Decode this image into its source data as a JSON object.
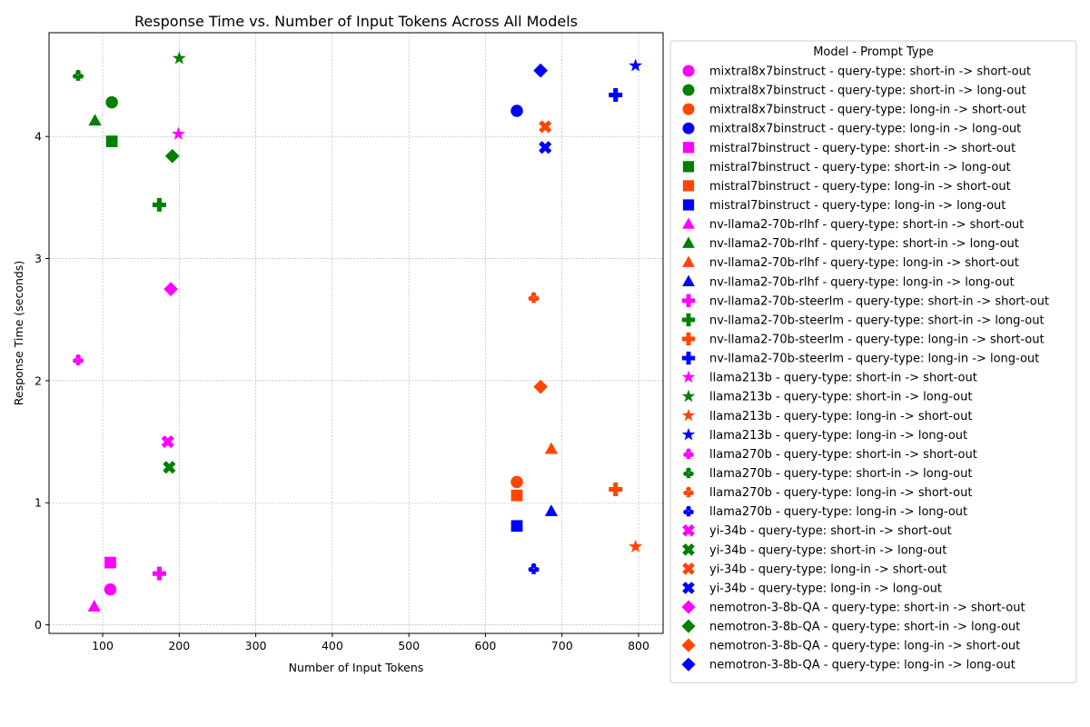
{
  "chart_data": {
    "type": "scatter",
    "title": "Response Time vs. Number of Input Tokens Across All Models",
    "xlabel": "Number of Input Tokens",
    "ylabel": "Response Time (seconds)",
    "xlim": [
      30,
      832
    ],
    "ylim": [
      -0.07,
      4.85
    ],
    "xticks": [
      100,
      200,
      300,
      400,
      500,
      600,
      700,
      800
    ],
    "yticks": [
      0,
      1,
      2,
      3,
      4
    ],
    "grid": true,
    "legend_title": "Model - Prompt Type",
    "legend_position": "right-outside",
    "prompt_types": [
      {
        "label": "query-type: short-in -> short-out",
        "color": "#ff00ff"
      },
      {
        "label": "query-type: short-in -> long-out",
        "color": "#008000"
      },
      {
        "label": "query-type: long-in -> short-out",
        "color": "#ff4500"
      },
      {
        "label": "query-type: long-in -> long-out",
        "color": "#0000ff"
      }
    ],
    "models": [
      {
        "name": "mixtral8x7binstruct",
        "marker": "circle",
        "points": [
          [
            110,
            0.29
          ],
          [
            112,
            4.28
          ],
          [
            641,
            1.17
          ],
          [
            641,
            4.21
          ]
        ]
      },
      {
        "name": "mistral7binstruct",
        "marker": "square",
        "points": [
          [
            110,
            0.51
          ],
          [
            112,
            3.96
          ],
          [
            641,
            1.06
          ],
          [
            641,
            0.81
          ]
        ]
      },
      {
        "name": "nv-llama2-70b-rlhf",
        "marker": "triangle",
        "points": [
          [
            89,
            0.15
          ],
          [
            90,
            4.13
          ],
          [
            686,
            1.44
          ],
          [
            686,
            0.93
          ]
        ]
      },
      {
        "name": "nv-llama2-70b-steerlm",
        "marker": "plus",
        "points": [
          [
            174,
            0.42
          ],
          [
            174,
            3.44
          ],
          [
            770,
            1.11
          ],
          [
            770,
            4.34
          ]
        ]
      },
      {
        "name": "llama213b",
        "marker": "star",
        "points": [
          [
            199,
            4.02
          ],
          [
            200,
            4.64
          ],
          [
            796,
            0.64
          ],
          [
            796,
            4.58
          ]
        ]
      },
      {
        "name": "llama270b",
        "marker": "club",
        "points": [
          [
            68,
            2.17
          ],
          [
            68,
            4.5
          ],
          [
            663,
            2.68
          ],
          [
            663,
            0.46
          ]
        ]
      },
      {
        "name": "yi-34b",
        "marker": "x",
        "points": [
          [
            185,
            1.5
          ],
          [
            187,
            1.29
          ],
          [
            678,
            4.08
          ],
          [
            678,
            3.91
          ]
        ]
      },
      {
        "name": "nemotron-3-8b-QA",
        "marker": "diamond",
        "points": [
          [
            189,
            2.75
          ],
          [
            191,
            3.84
          ],
          [
            672,
            1.95
          ],
          [
            672,
            4.54
          ]
        ]
      }
    ]
  }
}
